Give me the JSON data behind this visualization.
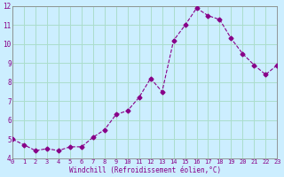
{
  "x": [
    0,
    1,
    2,
    3,
    4,
    5,
    6,
    7,
    8,
    9,
    10,
    11,
    12,
    13,
    14,
    15,
    16,
    17,
    18,
    19,
    20,
    21,
    22,
    23
  ],
  "y": [
    5.0,
    4.7,
    4.4,
    4.5,
    4.4,
    4.6,
    4.6,
    5.1,
    5.5,
    6.3,
    6.5,
    7.2,
    8.2,
    7.5,
    10.2,
    11.0,
    11.9,
    11.5,
    11.3,
    10.3,
    9.5,
    8.9,
    8.4,
    8.9
  ],
  "line_color": "#880088",
  "marker": "D",
  "marker_size": 2.5,
  "background_color": "#cceeff",
  "grid_color": "#aaddcc",
  "xlabel": "Windchill (Refroidissement éolien,°C)",
  "xlabel_color": "#880088",
  "tick_color": "#880088",
  "ylim": [
    4,
    12
  ],
  "xlim": [
    0,
    23
  ],
  "yticks": [
    4,
    5,
    6,
    7,
    8,
    9,
    10,
    11,
    12
  ],
  "xticks": [
    0,
    1,
    2,
    3,
    4,
    5,
    6,
    7,
    8,
    9,
    10,
    11,
    12,
    13,
    14,
    15,
    16,
    17,
    18,
    19,
    20,
    21,
    22,
    23
  ],
  "figsize": [
    3.2,
    2.0
  ],
  "dpi": 100
}
